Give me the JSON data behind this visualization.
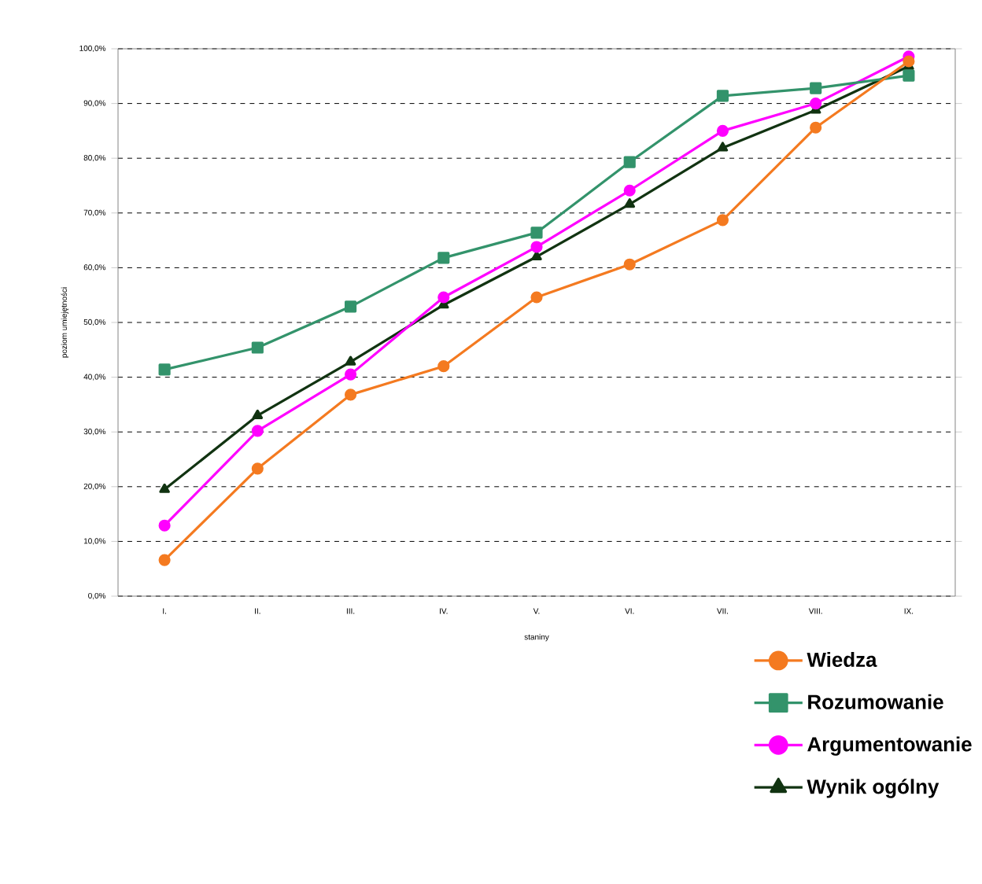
{
  "chart_data": {
    "type": "line",
    "xlabel": "staniny",
    "ylabel": "poziom umiejętności",
    "categories": [
      "I.",
      "II.",
      "III.",
      "IV.",
      "V.",
      "VI.",
      "VII.",
      "VIII.",
      "IX."
    ],
    "ylim": [
      0,
      100
    ],
    "yticks": [
      {
        "value": 0,
        "label": "0,0%"
      },
      {
        "value": 10,
        "label": "10,0%"
      },
      {
        "value": 20,
        "label": "20,0%"
      },
      {
        "value": 30,
        "label": "30,0%"
      },
      {
        "value": 40,
        "label": "40,0%"
      },
      {
        "value": 50,
        "label": "50,0%"
      },
      {
        "value": 60,
        "label": "60,0%"
      },
      {
        "value": 70,
        "label": "70,0%"
      },
      {
        "value": 80,
        "label": "80,0%"
      },
      {
        "value": 90,
        "label": "90,0%"
      },
      {
        "value": 100,
        "label": "100,0%"
      }
    ],
    "grid": "y",
    "legend": "bottom right",
    "line_style": "solid",
    "series": [
      {
        "name": "Wiedza",
        "color": "#f47a20",
        "marker": "circle",
        "values": [
          6.6,
          23.3,
          36.8,
          42,
          54.6,
          60.6,
          68.7,
          85.6,
          97.7
        ]
      },
      {
        "name": "Rozumowanie",
        "color": "#33936b",
        "marker": "square",
        "values": [
          41.4,
          45.4,
          52.9,
          61.8,
          66.4,
          79.3,
          91.4,
          92.8,
          95.1
        ]
      },
      {
        "name": "Argumentowanie",
        "color": "#ff00ff",
        "marker": "circle",
        "values": [
          12.9,
          30.2,
          40.5,
          54.6,
          63.8,
          74.1,
          85,
          90,
          98.6
        ]
      },
      {
        "name": "Wynik ogólny",
        "color": "#113311",
        "marker": "triangle",
        "values": [
          19.5,
          33,
          42.8,
          53.2,
          62,
          71.6,
          81.9,
          88.8,
          96.8
        ]
      }
    ]
  }
}
